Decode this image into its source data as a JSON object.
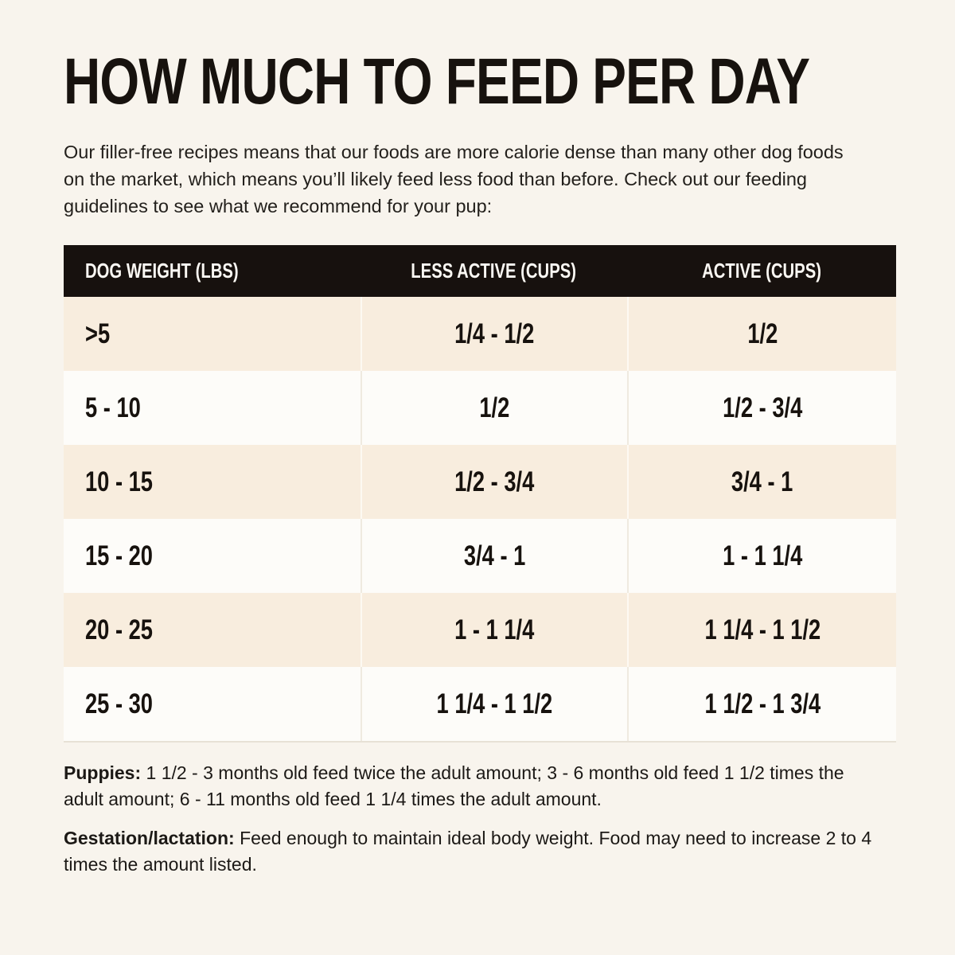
{
  "page": {
    "title": "HOW MUCH TO FEED PER DAY",
    "intro": "Our filler-free recipes means that our foods are more calorie dense than many other dog foods on the market, which means you’ll likely feed less food than before. Check out our feeding guidelines to see what we recommend for your pup:"
  },
  "table": {
    "columns": [
      "DOG WEIGHT (LBS)",
      "LESS ACTIVE (CUPS)",
      "ACTIVE (CUPS)"
    ],
    "rows": [
      {
        "weight": ">5",
        "less_active": "1/4 - 1/2",
        "active": "1/2"
      },
      {
        "weight": "5 - 10",
        "less_active": "1/2",
        "active": "1/2 - 3/4"
      },
      {
        "weight": "10 - 15",
        "less_active": "1/2 - 3/4",
        "active": "3/4 - 1"
      },
      {
        "weight": "15 - 20",
        "less_active": "3/4 - 1",
        "active": "1 - 1 1/4"
      },
      {
        "weight": "20 - 25",
        "less_active": "1 - 1 1/4",
        "active": "1 1/4 - 1 1/2"
      },
      {
        "weight": "25 - 30",
        "less_active": "1 1/4 - 1 1/2",
        "active": "1 1/2 - 1 3/4"
      }
    ]
  },
  "notes": {
    "puppies_label": "Puppies:",
    "puppies_text": " 1 1/2 - 3 months old feed twice the adult amount; 3 - 6 months old feed 1 1/2 times the adult amount; 6 - 11 months old feed 1 1/4 times the adult amount.",
    "gestation_label": "Gestation/lactation:",
    "gestation_text": " Feed enough to maintain ideal body weight. Food may need to increase 2 to 4 times the amount listed."
  },
  "colors": {
    "page_background": "#f8f4ed",
    "header_background": "#17110e",
    "header_text": "#fbf8f3",
    "row_odd_background": "#f8edde",
    "row_even_background": "#fdfcf9",
    "text": "#17120e"
  },
  "chart_data": {
    "type": "table",
    "title": "HOW MUCH TO FEED PER DAY",
    "columns": [
      "DOG WEIGHT (LBS)",
      "LESS ACTIVE (CUPS)",
      "ACTIVE (CUPS)"
    ],
    "rows": [
      [
        ">5",
        "1/4 - 1/2",
        "1/2"
      ],
      [
        "5 - 10",
        "1/2",
        "1/2 - 3/4"
      ],
      [
        "10 - 15",
        "1/2 - 3/4",
        "3/4 - 1"
      ],
      [
        "15 - 20",
        "3/4 - 1",
        "1 - 1 1/4"
      ],
      [
        "20 - 25",
        "1 - 1 1/4",
        "1 1/4 - 1 1/2"
      ],
      [
        "25 - 30",
        "1 1/4 - 1 1/2",
        "1 1/2 - 1 3/4"
      ]
    ]
  }
}
